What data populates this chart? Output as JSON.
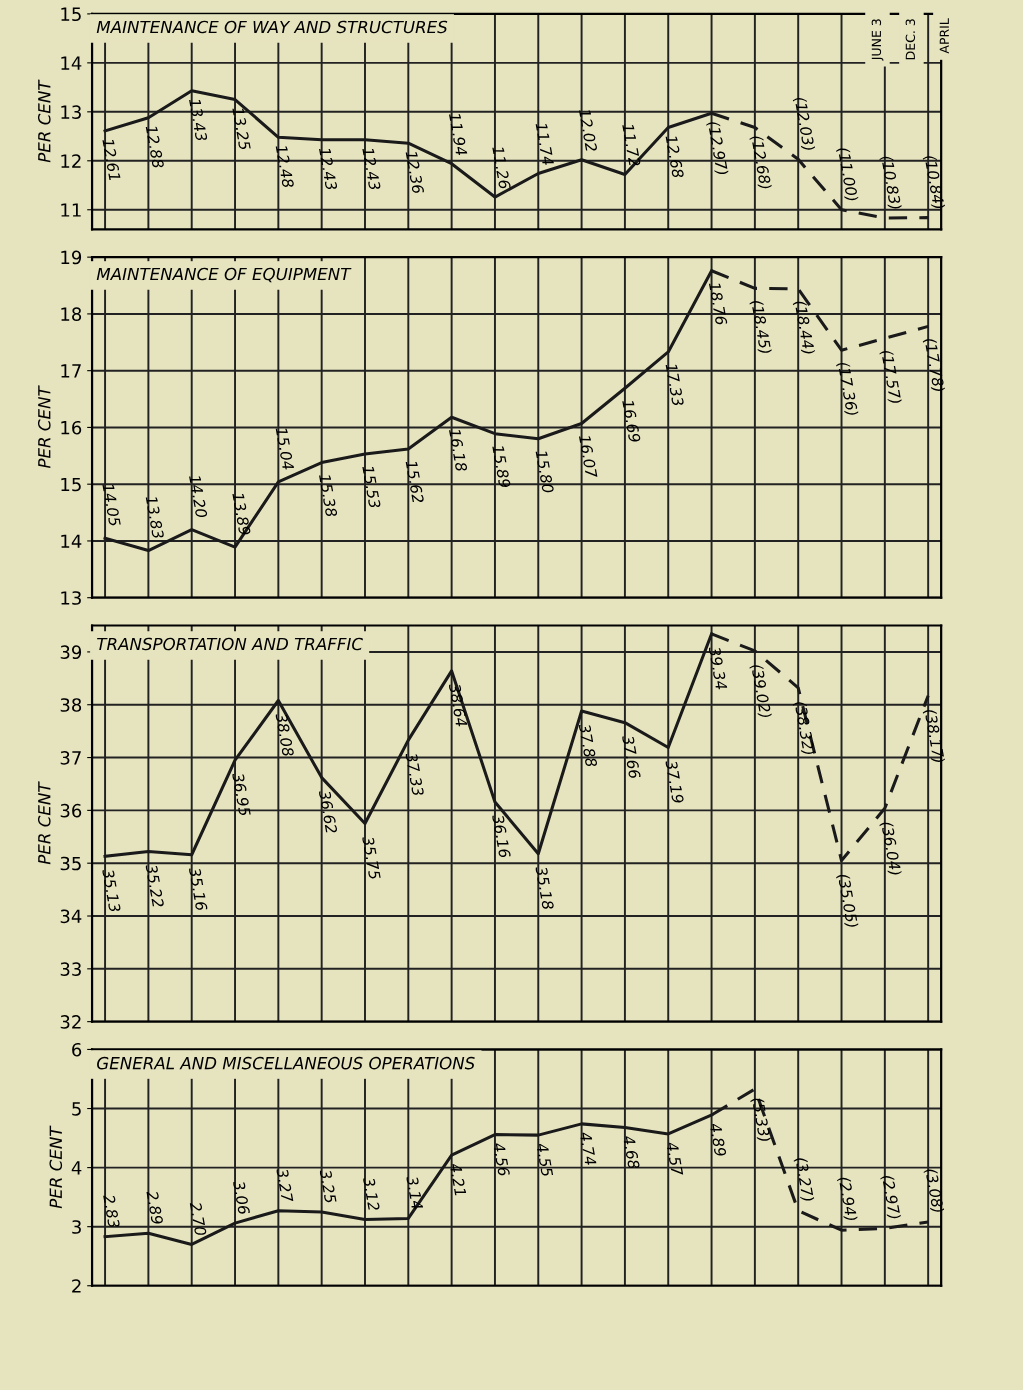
{
  "chart_data": [
    {
      "type": "line",
      "title": "MAINTENANCE OF WAY AND STRUCTURES",
      "ylabel": "PER CENT",
      "categories": [
        null,
        null,
        null,
        null,
        null,
        null,
        null,
        null,
        null,
        null,
        null,
        null,
        null,
        null,
        null,
        null,
        null,
        null,
        null,
        null
      ],
      "ylim": [
        10.6,
        15
      ],
      "yticks": [
        11,
        12,
        13,
        14,
        15
      ],
      "grid": true,
      "legend": false,
      "marker": "none",
      "tick_labels": "y",
      "annotations": [
        "JUNE 3",
        "DEC. 3",
        "APRIL"
      ],
      "series": [
        {
          "color": "#1a1a1a",
          "line_style": "solid",
          "values": [
            12.61,
            12.88,
            13.43,
            13.25,
            12.48,
            12.43,
            12.43,
            12.36,
            11.94,
            11.26,
            11.74,
            12.02,
            11.72,
            12.68,
            12.97,
            null,
            null,
            null,
            null,
            null
          ],
          "value_labels": [
            "12.61",
            "12.88",
            "13.43",
            "13.25",
            "12.48",
            "12.43",
            "12.43",
            "12.36",
            "11.94",
            "11.26",
            "11.74",
            "12.02",
            "11.72",
            "12.68",
            "(12.97)",
            null,
            null,
            null,
            null,
            null
          ]
        },
        {
          "color": "#1a1a1a",
          "line_style": "dashed",
          "values": [
            null,
            null,
            null,
            null,
            null,
            null,
            null,
            null,
            null,
            null,
            null,
            null,
            null,
            null,
            12.97,
            12.68,
            12.03,
            11.0,
            10.83,
            10.84
          ],
          "value_labels": [
            null,
            null,
            null,
            null,
            null,
            null,
            null,
            null,
            null,
            null,
            null,
            null,
            null,
            null,
            null,
            "(12.68)",
            "(12.03)",
            "(11.00)",
            "(10.83)",
            "(10.84)"
          ]
        }
      ]
    },
    {
      "type": "line",
      "title": "MAINTENANCE OF EQUIPMENT",
      "ylabel": "PER CENT",
      "categories": [
        null,
        null,
        null,
        null,
        null,
        null,
        null,
        null,
        null,
        null,
        null,
        null,
        null,
        null,
        null,
        null,
        null,
        null,
        null,
        null
      ],
      "ylim": [
        13,
        19
      ],
      "yticks": [
        13,
        14,
        15,
        16,
        17,
        18,
        19
      ],
      "grid": true,
      "legend": false,
      "marker": "none",
      "tick_labels": "y",
      "series": [
        {
          "color": "#1a1a1a",
          "line_style": "solid",
          "values": [
            14.05,
            13.83,
            14.2,
            13.89,
            15.04,
            15.38,
            15.53,
            15.62,
            16.18,
            15.89,
            15.8,
            16.07,
            16.69,
            17.33,
            18.76,
            null,
            null,
            null,
            null,
            null
          ],
          "value_labels": [
            "14.05",
            "13.83",
            "14.20",
            "13.89",
            "15.04",
            "15.38",
            "15.53",
            "15.62",
            "16.18",
            "15.89",
            "15.80",
            "16.07",
            "16.69",
            "17.33",
            "18.76",
            null,
            null,
            null,
            null,
            null
          ]
        },
        {
          "color": "#1a1a1a",
          "line_style": "dashed",
          "values": [
            null,
            null,
            null,
            null,
            null,
            null,
            null,
            null,
            null,
            null,
            null,
            null,
            null,
            null,
            18.76,
            18.45,
            18.44,
            17.36,
            17.57,
            17.78
          ],
          "value_labels": [
            null,
            null,
            null,
            null,
            null,
            null,
            null,
            null,
            null,
            null,
            null,
            null,
            null,
            null,
            null,
            "(18.45)",
            "(18.44)",
            "(17.36)",
            "(17.57)",
            "(17.78)"
          ]
        }
      ]
    },
    {
      "type": "line",
      "title": "TRANSPORTATION AND TRAFFIC",
      "ylabel": "PER CENT",
      "categories": [
        null,
        null,
        null,
        null,
        null,
        null,
        null,
        null,
        null,
        null,
        null,
        null,
        null,
        null,
        null,
        null,
        null,
        null,
        null,
        null
      ],
      "ylim": [
        32,
        39.5
      ],
      "yticks": [
        32,
        33,
        34,
        35,
        36,
        37,
        38,
        39
      ],
      "grid": true,
      "legend": false,
      "marker": "none",
      "tick_labels": "y",
      "series": [
        {
          "color": "#1a1a1a",
          "line_style": "solid",
          "values": [
            35.13,
            35.22,
            35.16,
            36.95,
            38.08,
            36.62,
            35.75,
            37.33,
            38.64,
            36.16,
            35.18,
            37.88,
            37.66,
            37.19,
            39.34,
            null,
            null,
            null,
            null,
            null
          ],
          "value_labels": [
            "35.13",
            "35.22",
            "35.16",
            "36.95",
            "38.08",
            "36.62",
            "35.75",
            "37.33",
            "38.64",
            "36.16",
            "35.18",
            "37.88",
            "37.66",
            "37.19",
            "39.34",
            null,
            null,
            null,
            null,
            null
          ]
        },
        {
          "color": "#1a1a1a",
          "line_style": "dashed",
          "values": [
            null,
            null,
            null,
            null,
            null,
            null,
            null,
            null,
            null,
            null,
            null,
            null,
            null,
            null,
            39.34,
            39.02,
            38.32,
            35.05,
            36.04,
            38.17
          ],
          "value_labels": [
            null,
            null,
            null,
            null,
            null,
            null,
            null,
            null,
            null,
            null,
            null,
            null,
            null,
            null,
            null,
            "(39.02)",
            "(38.32)",
            "(35.05)",
            "(36.04)",
            "(38.17)"
          ]
        }
      ]
    },
    {
      "type": "line",
      "title": "GENERAL AND MISCELLANEOUS OPERATIONS",
      "ylabel": "PER CENT",
      "categories": [
        null,
        null,
        null,
        null,
        null,
        null,
        null,
        null,
        null,
        null,
        null,
        null,
        null,
        null,
        null,
        null,
        null,
        null,
        null,
        null
      ],
      "ylim": [
        2,
        6
      ],
      "yticks": [
        2,
        3,
        4,
        5,
        6
      ],
      "grid": true,
      "legend": false,
      "marker": "none",
      "tick_labels": "y",
      "series": [
        {
          "color": "#1a1a1a",
          "line_style": "solid",
          "values": [
            2.83,
            2.89,
            2.7,
            3.06,
            3.27,
            3.25,
            3.12,
            3.14,
            4.21,
            4.56,
            4.55,
            4.74,
            4.68,
            4.57,
            4.89,
            null,
            null,
            null,
            null,
            null
          ],
          "value_labels": [
            "2.83",
            "2.89",
            "2.70",
            "3.06",
            "3.27",
            "3.25",
            "3.12",
            "3.14",
            "4.21",
            "4.56",
            "4.55",
            "4.74",
            "4.68",
            "4.57",
            "4.89",
            null,
            null,
            null,
            null,
            null
          ]
        },
        {
          "color": "#1a1a1a",
          "line_style": "dashed",
          "values": [
            null,
            null,
            null,
            null,
            null,
            null,
            null,
            null,
            null,
            null,
            null,
            null,
            null,
            null,
            4.89,
            5.33,
            3.27,
            2.94,
            2.97,
            3.08
          ],
          "value_labels": [
            null,
            null,
            null,
            null,
            null,
            null,
            null,
            null,
            null,
            null,
            null,
            null,
            null,
            null,
            null,
            "(5.33)",
            "(3.27)",
            "(2.94)",
            "(2.97)",
            "(3.08)"
          ]
        }
      ]
    }
  ]
}
